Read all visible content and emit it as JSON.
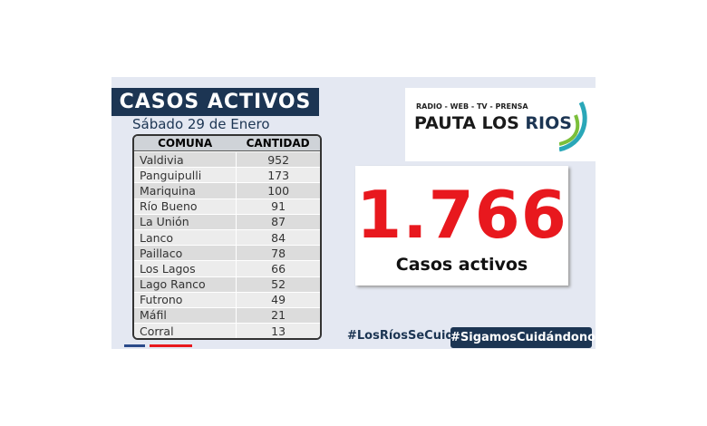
{
  "header": {
    "title": "CASOS ACTIVOS",
    "subtitle": "Sábado 29 de Enero"
  },
  "table": {
    "columns": [
      "COMUNA",
      "CANTIDAD"
    ],
    "rows": [
      [
        "Valdivia",
        952
      ],
      [
        "Panguipulli",
        173
      ],
      [
        "Mariquina",
        100
      ],
      [
        "Río Bueno",
        91
      ],
      [
        "La Unión",
        87
      ],
      [
        "Lanco",
        84
      ],
      [
        "Paillaco",
        78
      ],
      [
        "Los Lagos",
        66
      ],
      [
        "Lago Ranco",
        52
      ],
      [
        "Futrono",
        49
      ],
      [
        "Máfil",
        21
      ],
      [
        "Corral",
        13
      ]
    ]
  },
  "logo": {
    "tagline": "RADIO - WEB - TV - PRENSA",
    "name": "PAUTA LOS ",
    "name_highlight": "RIOS"
  },
  "total": {
    "value": "1.766",
    "label": "Casos activos"
  },
  "hashtags": [
    "#LosRíosSeCuida",
    "#SigamosCuidándonos"
  ]
}
